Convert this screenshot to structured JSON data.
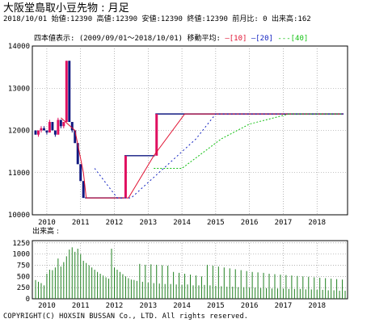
{
  "header": {
    "title": "大阪堂島取小豆先物 :   月足",
    "info": "2018/10/01 始値:12390 高値:12390 安値:12390 終値:12390 前月比: 0 出来高:162",
    "period_label": "四本値表示: (2009/09/01～2018/10/01) 移動平均:",
    "ma10_label": "[10]",
    "ma20_label": "[20]",
    "ma40_label": "[40]"
  },
  "volume_title": "出来高  :",
  "copyright": "COPYRIGHT(C) HOXSIN BUSSAN Co., LTD. All rights reserved.",
  "colors": {
    "axis": "#000000",
    "grid": "#888888",
    "ma10": "#e01030",
    "ma20": "#1020c0",
    "ma40": "#10c010",
    "candle_up": "#e01060",
    "candle_down": "#101880",
    "volume": "#208020"
  },
  "chart_data": [
    {
      "type": "candlestick",
      "x_ticks": [
        "2010",
        "2011",
        "2012",
        "2013",
        "2014",
        "2015",
        "2016",
        "2017",
        "2018"
      ],
      "y_ticks": [
        10000,
        11000,
        12000,
        13000,
        14000
      ],
      "ylim": [
        10000,
        14000
      ],
      "start_month": "2009-09",
      "grid": true,
      "candles": [
        {
          "m": "2009-09",
          "o": 12000,
          "h": 12000,
          "l": 11900,
          "c": 11900
        },
        {
          "m": "2009-10",
          "o": 11900,
          "h": 12000,
          "l": 11850,
          "c": 12000
        },
        {
          "m": "2009-11",
          "o": 12000,
          "h": 12100,
          "l": 11950,
          "c": 12050
        },
        {
          "m": "2009-12",
          "o": 12050,
          "h": 12100,
          "l": 12000,
          "c": 12000
        },
        {
          "m": "2010-01",
          "o": 12000,
          "h": 12000,
          "l": 11900,
          "c": 11950
        },
        {
          "m": "2010-02",
          "o": 11950,
          "h": 12250,
          "l": 11950,
          "c": 12200
        },
        {
          "m": "2010-03",
          "o": 12200,
          "h": 12200,
          "l": 12000,
          "c": 12000
        },
        {
          "m": "2010-04",
          "o": 12000,
          "h": 12000,
          "l": 11850,
          "c": 11900
        },
        {
          "m": "2010-05",
          "o": 11900,
          "h": 12300,
          "l": 11900,
          "c": 12250
        },
        {
          "m": "2010-06",
          "o": 12250,
          "h": 12250,
          "l": 12050,
          "c": 12100
        },
        {
          "m": "2010-07",
          "o": 12100,
          "h": 12200,
          "l": 12050,
          "c": 12200
        },
        {
          "m": "2010-08",
          "o": 12200,
          "h": 13650,
          "l": 12200,
          "c": 13650
        },
        {
          "m": "2010-09",
          "o": 13650,
          "h": 13650,
          "l": 12200,
          "c": 12200
        },
        {
          "m": "2010-10",
          "o": 12200,
          "h": 12200,
          "l": 11950,
          "c": 12000
        },
        {
          "m": "2010-11",
          "o": 12000,
          "h": 12000,
          "l": 11700,
          "c": 11700
        },
        {
          "m": "2010-12",
          "o": 11700,
          "h": 11700,
          "l": 11200,
          "c": 11200
        },
        {
          "m": "2011-01",
          "o": 11200,
          "h": 11200,
          "l": 10800,
          "c": 10800
        },
        {
          "m": "2011-02",
          "o": 10800,
          "h": 10800,
          "l": 10400,
          "c": 10400
        }
      ],
      "flat_segments": [
        {
          "from": "2011-03",
          "to": "2012-04",
          "value": 10400
        },
        {
          "from": "2012-05",
          "to": "2013-03",
          "value": 11400
        },
        {
          "from": "2013-04",
          "to": "2018-10",
          "value": 12390
        }
      ],
      "step_up_bars": [
        {
          "m": "2012-05",
          "from": 10400,
          "to": 11400
        },
        {
          "m": "2013-04",
          "from": 11400,
          "to": 12390
        }
      ],
      "series": [
        {
          "name": "[10]",
          "points": [
            [
              "2010-06",
              12300
            ],
            [
              "2010-11",
              12000
            ],
            [
              "2011-02",
              11000
            ],
            [
              "2011-03",
              10400
            ],
            [
              "2012-06",
              10400
            ],
            [
              "2013-03",
              11400
            ],
            [
              "2014-02",
              12390
            ],
            [
              "2018-10",
              12390
            ]
          ]
        },
        {
          "name": "[20]",
          "points": [
            [
              "2011-06",
              11100
            ],
            [
              "2012-02",
              10400
            ],
            [
              "2012-07",
              10400
            ],
            [
              "2014-06",
              11800
            ],
            [
              "2015-01",
              12390
            ],
            [
              "2018-10",
              12390
            ]
          ]
        },
        {
          "name": "[40]",
          "points": [
            [
              "2013-03",
              11100
            ],
            [
              "2014-01",
              11100
            ],
            [
              "2015-03",
              11800
            ],
            [
              "2016-01",
              12150
            ],
            [
              "2017-03",
              12390
            ],
            [
              "2018-10",
              12390
            ]
          ]
        }
      ]
    },
    {
      "type": "bar",
      "title": "出来高",
      "x_ticks": [
        "2010",
        "2011",
        "2012",
        "2013",
        "2014",
        "2015",
        "2016",
        "2017",
        "2018"
      ],
      "y_ticks": [
        0,
        250,
        500,
        750,
        1000,
        1250
      ],
      "ylim": [
        0,
        1300
      ],
      "start_month": "2009-09",
      "values": [
        420,
        380,
        350,
        300,
        560,
        650,
        640,
        700,
        900,
        720,
        820,
        950,
        1100,
        1150,
        1050,
        1120,
        1000,
        850,
        800,
        750,
        700,
        650,
        600,
        560,
        520,
        480,
        450,
        1120,
        700,
        650,
        600,
        550,
        500,
        460,
        430,
        420,
        400,
        780,
        380,
        760,
        360,
        770,
        350,
        760,
        340,
        750,
        330,
        740,
        330,
        600,
        320,
        580,
        310,
        560,
        320,
        540,
        300,
        520,
        300,
        500,
        310,
        760,
        300,
        740,
        290,
        720,
        280,
        700,
        270,
        680,
        270,
        660,
        260,
        640,
        260,
        620,
        250,
        600,
        250,
        590,
        240,
        580,
        240,
        560,
        230,
        550,
        230,
        540,
        230,
        530,
        220,
        520,
        220,
        510,
        220,
        500,
        210,
        490,
        210,
        480,
        200,
        470,
        200,
        460,
        190,
        450,
        190,
        440,
        180,
        430,
        180,
        420,
        170,
        410,
        170,
        400,
        162
      ]
    }
  ]
}
